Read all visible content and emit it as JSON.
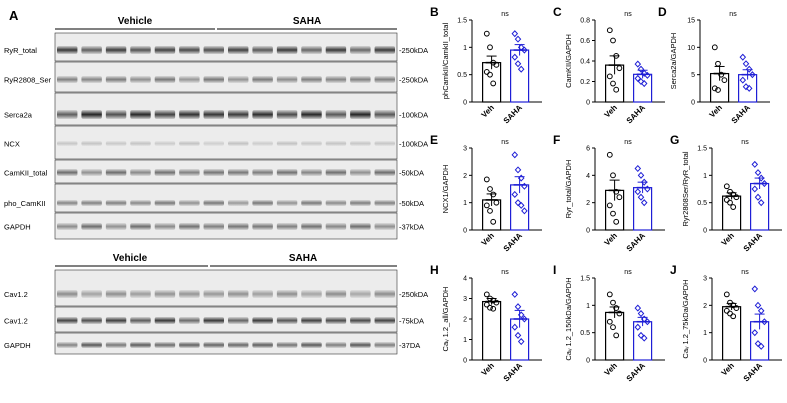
{
  "western_blot": {
    "panel_letter": "A",
    "top_block": {
      "group_left": "Vehicle",
      "group_right": "SAHA",
      "rows": [
        {
          "label": "RyR_total",
          "marker": "-250kDA"
        },
        {
          "label": "RyR2808_Ser",
          "marker": "-250kDA"
        },
        {
          "label": "Serca2a",
          "marker": "-100kDA"
        },
        {
          "label": "NCX",
          "marker": "-100kDA"
        },
        {
          "label": "CamKII_total",
          "marker": "-50kDA"
        },
        {
          "label": "pho_CamKII",
          "marker": "-50kDA"
        },
        {
          "label": "GAPDH",
          "marker": "-37kDA"
        }
      ]
    },
    "bottom_block": {
      "group_left": "Vehicle",
      "group_right": "SAHA",
      "rows": [
        {
          "label": "Cav1.2",
          "marker": "-250kDA"
        },
        {
          "label": "Cav1.2",
          "marker": "-75kDA"
        },
        {
          "label": "GAPDH",
          "marker": "-37DA"
        }
      ]
    }
  },
  "colors": {
    "vehicle": "#000000",
    "saha": "#1f1fd6"
  },
  "chart_data": [
    {
      "panel": "B",
      "type": "bar",
      "ylabel": "phCamkII/CamkII_total",
      "categories": [
        "Veh",
        "SAHA"
      ],
      "ylim": [
        0,
        1.5
      ],
      "yticks": [
        0.0,
        0.5,
        1.0,
        1.5
      ],
      "significance": "ns",
      "series": [
        {
          "values": [
            0.72,
            0.95
          ],
          "sem": [
            0.12,
            0.1
          ]
        }
      ],
      "points": [
        [
          1.25,
          1.0,
          0.72,
          0.68,
          0.55,
          0.5,
          0.34
        ],
        [
          1.25,
          1.15,
          1.0,
          0.95,
          0.82,
          0.7,
          0.6
        ]
      ]
    },
    {
      "panel": "C",
      "type": "bar",
      "ylabel": "CamKII/GAPDH",
      "categories": [
        "Veh",
        "SAHA"
      ],
      "ylim": [
        0,
        0.8
      ],
      "yticks": [
        0.0,
        0.2,
        0.4,
        0.6,
        0.8
      ],
      "significance": "ns",
      "series": [
        {
          "values": [
            0.36,
            0.27
          ],
          "sem": [
            0.09,
            0.04
          ]
        }
      ],
      "points": [
        [
          0.7,
          0.6,
          0.45,
          0.33,
          0.25,
          0.18,
          0.12
        ],
        [
          0.37,
          0.32,
          0.28,
          0.26,
          0.23,
          0.2,
          0.18
        ]
      ]
    },
    {
      "panel": "D",
      "type": "bar",
      "ylabel": "Serca2a/GAPDH",
      "categories": [
        "Veh",
        "SAHA"
      ],
      "ylim": [
        0,
        15
      ],
      "yticks": [
        0,
        5,
        10,
        15
      ],
      "significance": "ns",
      "series": [
        {
          "values": [
            5.2,
            5.0
          ],
          "sem": [
            1.3,
            0.9
          ]
        }
      ],
      "points": [
        [
          10.0,
          7.0,
          5.0,
          4.0,
          2.5,
          2.2
        ],
        [
          8.2,
          7.0,
          6.0,
          5.0,
          4.0,
          2.8,
          2.5
        ]
      ]
    },
    {
      "panel": "E",
      "type": "bar",
      "ylabel": "NCX1/GAPDH",
      "categories": [
        "Veh",
        "SAHA"
      ],
      "ylim": [
        0,
        3
      ],
      "yticks": [
        0,
        1,
        2,
        3
      ],
      "significance": "ns",
      "series": [
        {
          "values": [
            1.1,
            1.65
          ],
          "sem": [
            0.22,
            0.3
          ]
        }
      ],
      "points": [
        [
          1.85,
          1.5,
          1.3,
          1.0,
          0.9,
          0.7,
          0.3
        ],
        [
          2.75,
          2.2,
          1.9,
          1.6,
          1.3,
          1.0,
          0.9,
          0.7
        ]
      ]
    },
    {
      "panel": "F",
      "type": "bar",
      "ylabel": "Ryr_total/GAPDH",
      "categories": [
        "Veh",
        "SAHA"
      ],
      "ylim": [
        0,
        6
      ],
      "yticks": [
        0,
        2,
        4,
        6
      ],
      "significance": "ns",
      "series": [
        {
          "values": [
            2.9,
            3.1
          ],
          "sem": [
            0.75,
            0.4
          ]
        }
      ],
      "points": [
        [
          5.5,
          4.0,
          2.8,
          2.4,
          1.8,
          1.2,
          0.6
        ],
        [
          4.5,
          4.0,
          3.5,
          3.0,
          2.8,
          2.4,
          2.0
        ]
      ]
    },
    {
      "panel": "G",
      "type": "bar",
      "ylabel": "Ryr2808Ser/RyR_total",
      "categories": [
        "Veh",
        "SAHA"
      ],
      "ylim": [
        0,
        1.5
      ],
      "yticks": [
        0.0,
        0.5,
        1.0,
        1.5
      ],
      "significance": "ns",
      "series": [
        {
          "values": [
            0.62,
            0.85
          ],
          "sem": [
            0.06,
            0.1
          ]
        }
      ],
      "points": [
        [
          0.8,
          0.7,
          0.65,
          0.6,
          0.55,
          0.5,
          0.42
        ],
        [
          1.2,
          1.05,
          0.95,
          0.85,
          0.75,
          0.6,
          0.5
        ]
      ]
    },
    {
      "panel": "H",
      "type": "bar",
      "ylabel": "Caᵥ 1.2_all/GAPDH",
      "categories": [
        "Veh",
        "SAHA"
      ],
      "ylim": [
        0,
        4
      ],
      "yticks": [
        0,
        1,
        2,
        3,
        4
      ],
      "significance": "ns",
      "series": [
        {
          "values": [
            2.85,
            2.0
          ],
          "sem": [
            0.15,
            0.42
          ]
        }
      ],
      "points": [
        [
          3.2,
          3.0,
          2.9,
          2.8,
          2.7,
          2.55,
          2.5
        ],
        [
          3.2,
          2.6,
          2.2,
          2.0,
          1.6,
          1.2,
          0.9
        ]
      ]
    },
    {
      "panel": "I",
      "type": "bar",
      "ylabel": "Caᵥ 1.2_150kDa/GAPDH",
      "categories": [
        "Veh",
        "SAHA"
      ],
      "ylim": [
        0,
        1.5
      ],
      "yticks": [
        0.0,
        0.5,
        1.0,
        1.5
      ],
      "significance": "ns",
      "series": [
        {
          "values": [
            0.87,
            0.7
          ],
          "sem": [
            0.1,
            0.08
          ]
        }
      ],
      "points": [
        [
          1.2,
          1.05,
          0.95,
          0.85,
          0.7,
          0.6,
          0.45
        ],
        [
          0.95,
          0.85,
          0.75,
          0.7,
          0.6,
          0.45,
          0.4
        ]
      ]
    },
    {
      "panel": "J",
      "type": "bar",
      "ylabel": "Caᵥ 1.2_75kDa/GAPDH",
      "categories": [
        "Veh",
        "SAHA"
      ],
      "ylim": [
        0,
        3
      ],
      "yticks": [
        0,
        1,
        2,
        3
      ],
      "significance": "ns",
      "series": [
        {
          "values": [
            1.95,
            1.4
          ],
          "sem": [
            0.12,
            0.28
          ]
        }
      ],
      "points": [
        [
          2.4,
          2.1,
          2.0,
          1.9,
          1.8,
          1.7,
          1.6
        ],
        [
          2.6,
          2.0,
          1.8,
          1.4,
          1.0,
          0.6,
          0.5
        ]
      ]
    }
  ]
}
